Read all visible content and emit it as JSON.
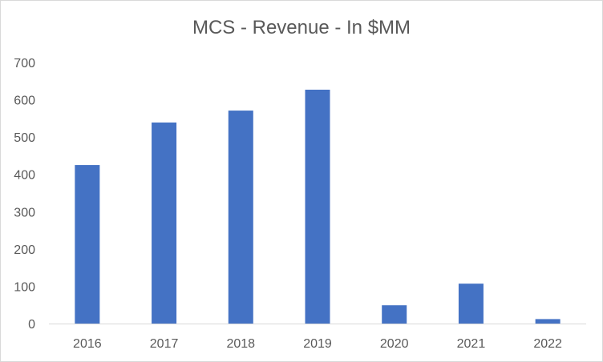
{
  "chart_data": {
    "type": "bar",
    "title": "MCS - Revenue - In $MM",
    "categories": [
      "2016",
      "2017",
      "2018",
      "2019",
      "2020",
      "2021",
      "2022"
    ],
    "values": [
      425,
      539,
      571,
      627,
      49,
      107,
      12
    ],
    "ylim": [
      0,
      700
    ],
    "yticks": [
      0,
      100,
      200,
      300,
      400,
      500,
      600,
      700
    ],
    "grid": false,
    "legend": "none",
    "bar_color": "#4472C4"
  }
}
